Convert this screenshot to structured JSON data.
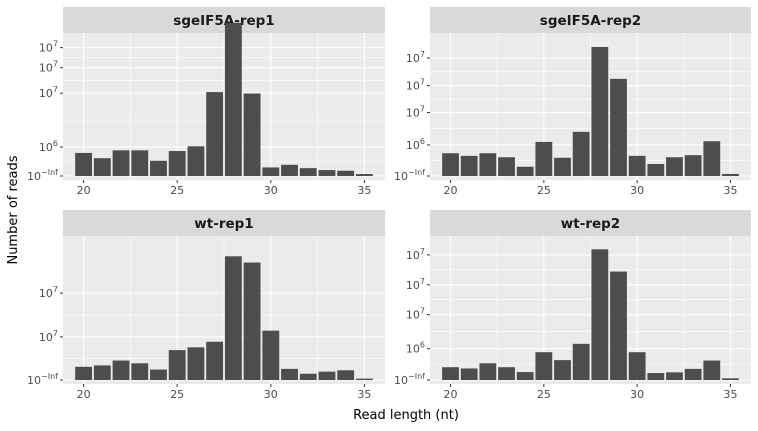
{
  "colors": {
    "panel_bg": "#ebebeb",
    "strip_bg": "#d9d9d9",
    "grid": "#ffffff",
    "bar": "#4d4d4d",
    "tick": "#333333"
  },
  "chart_data": {
    "type": "bar",
    "xlabel": "Read length (nt)",
    "ylabel": "Number of reads",
    "x_ticks": [
      20,
      25,
      30,
      35
    ],
    "xlim": [
      18.9,
      36.1
    ],
    "categories": [
      20,
      21,
      22,
      23,
      24,
      25,
      26,
      27,
      28,
      29,
      30,
      31,
      32,
      33,
      34,
      35
    ],
    "grid": true,
    "facets": [
      {
        "name": "sgeIF5A-rep1",
        "y_ticks": [
          {
            "label_base": "10",
            "label_exp": "−Inf",
            "frac": 0.0
          },
          {
            "label_base": "10",
            "label_exp": "6",
            "frac": 0.21
          },
          {
            "label_base": "10",
            "label_exp": "7",
            "frac": 0.6
          },
          {
            "label_base": "10",
            "label_exp": "7",
            "frac": 0.785
          },
          {
            "label_base": "10",
            "label_exp": "7",
            "frac": 0.93
          }
        ],
        "values": [
          0.167,
          0.129,
          0.186,
          0.186,
          0.11,
          0.181,
          0.215,
          0.608,
          1.11,
          0.598,
          0.062,
          0.081,
          0.057,
          0.043,
          0.038,
          0.014
        ]
      },
      {
        "name": "sgeIF5A-rep2",
        "y_ticks": [
          {
            "label_base": "10",
            "label_exp": "−Inf",
            "frac": 0.0
          },
          {
            "label_base": "10",
            "label_exp": "6",
            "frac": 0.225
          },
          {
            "label_base": "10",
            "label_exp": "7",
            "frac": 0.46
          },
          {
            "label_base": "10",
            "label_exp": "7",
            "frac": 0.655
          },
          {
            "label_base": "10",
            "label_exp": "7",
            "frac": 0.855
          }
        ],
        "values": [
          0.165,
          0.146,
          0.165,
          0.136,
          0.067,
          0.247,
          0.132,
          0.32,
          0.935,
          0.704,
          0.146,
          0.087,
          0.136,
          0.151,
          0.252,
          0.015
        ]
      },
      {
        "name": "wt-rep1",
        "y_ticks": [
          {
            "label_base": "10",
            "label_exp": "−Inf",
            "frac": 0.0
          },
          {
            "label_base": "10",
            "label_exp": "7",
            "frac": 0.31
          },
          {
            "label_base": "10",
            "label_exp": "7",
            "frac": 0.625
          }
        ],
        "values": [
          0.095,
          0.105,
          0.14,
          0.12,
          0.075,
          0.215,
          0.235,
          0.275,
          0.89,
          0.845,
          0.355,
          0.08,
          0.045,
          0.06,
          0.07,
          0.01
        ]
      },
      {
        "name": "wt-rep2",
        "y_ticks": [
          {
            "label_base": "10",
            "label_exp": "−Inf",
            "frac": 0.0
          },
          {
            "label_base": "10",
            "label_exp": "6",
            "frac": 0.225
          },
          {
            "label_base": "10",
            "label_exp": "7",
            "frac": 0.47
          },
          {
            "label_base": "10",
            "label_exp": "7",
            "frac": 0.685
          },
          {
            "label_base": "10",
            "label_exp": "7",
            "frac": 0.9
          }
        ],
        "values": [
          0.092,
          0.083,
          0.12,
          0.092,
          0.057,
          0.2,
          0.143,
          0.26,
          0.94,
          0.78,
          0.2,
          0.05,
          0.055,
          0.08,
          0.14,
          0.012
        ]
      }
    ]
  }
}
